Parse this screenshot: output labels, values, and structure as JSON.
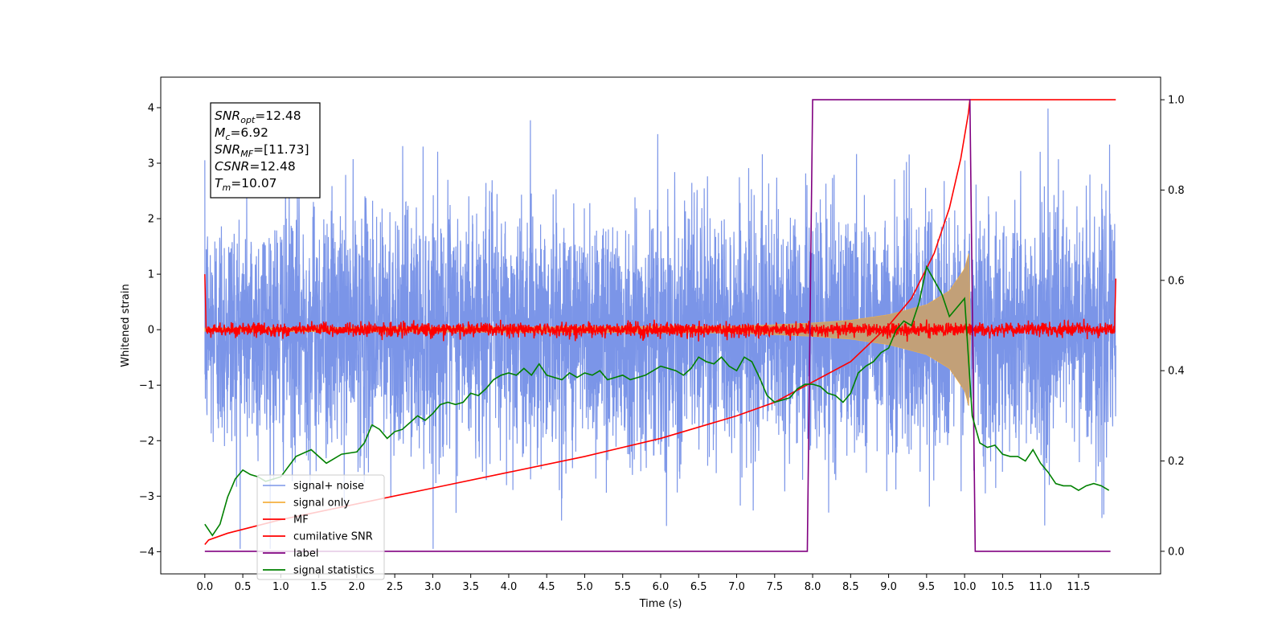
{
  "chart_data": {
    "type": "line",
    "title": "",
    "xlabel": "Time (s)",
    "ylabel": "Whitened strain",
    "xlim": [
      -0.58,
      12.58
    ],
    "ylim_left": [
      -4.4,
      4.55
    ],
    "ylim_right": [
      -0.05,
      1.05
    ],
    "x_ticks": [
      "0.0",
      "0.5",
      "1.0",
      "1.5",
      "2.0",
      "2.5",
      "3.0",
      "3.5",
      "4.0",
      "4.5",
      "5.0",
      "5.5",
      "6.0",
      "6.5",
      "7.0",
      "7.5",
      "8.0",
      "8.5",
      "9.0",
      "9.5",
      "10.0",
      "10.5",
      "11.0",
      "11.5"
    ],
    "y_left_ticks": [
      "−4",
      "−3",
      "−2",
      "−1",
      "0",
      "1",
      "2",
      "3",
      "4"
    ],
    "y_right_ticks": [
      "0.0",
      "0.2",
      "0.4",
      "0.6",
      "0.8",
      "1.0"
    ],
    "grid": false,
    "legend_position": "lower-left",
    "info_box": {
      "lines": [
        {
          "main": "SNR",
          "sub": "opt",
          "value": "=12.48"
        },
        {
          "main": "M",
          "sub": "c",
          "value": "=6.92"
        },
        {
          "main": "SNR",
          "sub": "MF",
          "value": "=[11.73]"
        },
        {
          "main": "CSNR",
          "sub": "",
          "value": "=12.48"
        },
        {
          "main": "T",
          "sub": "m",
          "value": "=10.07"
        }
      ]
    },
    "series": [
      {
        "name": "signal+ noise",
        "color": "#7b95e8",
        "axis": "left",
        "kind": "noise",
        "amplitude_envelope_sd": 1.1,
        "x_range": [
          0.0,
          11.99
        ]
      },
      {
        "name": "signal only",
        "color": "#f5b041",
        "fill_color": "#c2a078",
        "axis": "left",
        "kind": "chirp",
        "x": [
          0.0,
          7.0,
          8.0,
          8.5,
          9.0,
          9.5,
          9.8,
          10.0,
          10.07,
          10.08
        ],
        "envelope": [
          0.03,
          0.06,
          0.12,
          0.17,
          0.27,
          0.45,
          0.7,
          1.1,
          1.45,
          0.0
        ]
      },
      {
        "name": "MF",
        "color": "#ff0000",
        "axis": "left",
        "kind": "noise",
        "amplitude_sd": 0.06,
        "x_range": [
          0.0,
          11.99
        ],
        "edge_values": [
          1.0,
          0.92
        ]
      },
      {
        "name": "cumilative SNR",
        "color": "#ff0000",
        "axis": "right",
        "x": [
          0.0,
          0.05,
          0.3,
          1.0,
          2.0,
          3.0,
          4.0,
          5.0,
          6.0,
          7.0,
          7.5,
          8.0,
          8.5,
          9.0,
          9.3,
          9.6,
          9.8,
          9.95,
          10.05,
          10.07,
          10.08,
          11.99
        ],
        "y": [
          0.015,
          0.025,
          0.04,
          0.07,
          0.105,
          0.14,
          0.175,
          0.21,
          0.25,
          0.3,
          0.33,
          0.375,
          0.42,
          0.5,
          0.56,
          0.66,
          0.76,
          0.87,
          0.97,
          1.0,
          1.0,
          1.0
        ]
      },
      {
        "name": "label",
        "color": "#800080",
        "axis": "right",
        "x": [
          0.0,
          7.93,
          8.0,
          10.07,
          10.14,
          11.92
        ],
        "y": [
          0.0,
          0.0,
          1.0,
          1.0,
          0.0,
          0.0
        ]
      },
      {
        "name": "signal statistics",
        "color": "#008000",
        "axis": "right",
        "x": [
          0.0,
          0.1,
          0.2,
          0.3,
          0.4,
          0.5,
          0.6,
          0.7,
          0.8,
          1.0,
          1.2,
          1.4,
          1.6,
          1.8,
          2.0,
          2.1,
          2.2,
          2.3,
          2.4,
          2.5,
          2.6,
          2.7,
          2.8,
          2.9,
          3.0,
          3.1,
          3.2,
          3.3,
          3.4,
          3.5,
          3.6,
          3.7,
          3.8,
          3.9,
          4.0,
          4.1,
          4.2,
          4.3,
          4.4,
          4.5,
          4.6,
          4.7,
          4.8,
          4.9,
          5.0,
          5.1,
          5.2,
          5.3,
          5.4,
          5.5,
          5.6,
          5.7,
          5.8,
          5.9,
          6.0,
          6.1,
          6.2,
          6.3,
          6.4,
          6.5,
          6.6,
          6.7,
          6.8,
          6.9,
          7.0,
          7.1,
          7.2,
          7.3,
          7.4,
          7.5,
          7.6,
          7.7,
          7.8,
          7.9,
          8.0,
          8.1,
          8.2,
          8.3,
          8.4,
          8.5,
          8.6,
          8.7,
          8.8,
          8.9,
          9.0,
          9.1,
          9.2,
          9.3,
          9.4,
          9.5,
          9.6,
          9.7,
          9.8,
          9.9,
          10.0,
          10.1,
          10.2,
          10.3,
          10.4,
          10.5,
          10.6,
          10.7,
          10.8,
          10.9,
          11.0,
          11.1,
          11.2,
          11.3,
          11.4,
          11.5,
          11.6,
          11.7,
          11.8,
          11.9
        ],
        "y": [
          0.06,
          0.035,
          0.06,
          0.12,
          0.16,
          0.18,
          0.17,
          0.165,
          0.155,
          0.165,
          0.21,
          0.225,
          0.195,
          0.215,
          0.22,
          0.24,
          0.28,
          0.27,
          0.25,
          0.265,
          0.27,
          0.285,
          0.3,
          0.29,
          0.305,
          0.325,
          0.33,
          0.325,
          0.33,
          0.35,
          0.345,
          0.36,
          0.38,
          0.39,
          0.395,
          0.39,
          0.405,
          0.39,
          0.415,
          0.39,
          0.385,
          0.38,
          0.395,
          0.385,
          0.395,
          0.39,
          0.4,
          0.38,
          0.385,
          0.39,
          0.38,
          0.385,
          0.39,
          0.4,
          0.41,
          0.405,
          0.4,
          0.39,
          0.405,
          0.43,
          0.42,
          0.415,
          0.43,
          0.41,
          0.4,
          0.43,
          0.42,
          0.385,
          0.345,
          0.33,
          0.335,
          0.34,
          0.36,
          0.37,
          0.37,
          0.365,
          0.35,
          0.345,
          0.33,
          0.35,
          0.395,
          0.41,
          0.42,
          0.44,
          0.45,
          0.49,
          0.51,
          0.5,
          0.55,
          0.63,
          0.6,
          0.57,
          0.52,
          0.54,
          0.56,
          0.3,
          0.24,
          0.23,
          0.235,
          0.215,
          0.21,
          0.21,
          0.2,
          0.225,
          0.195,
          0.175,
          0.15,
          0.145,
          0.145,
          0.135,
          0.145,
          0.15,
          0.145,
          0.135
        ]
      }
    ]
  }
}
